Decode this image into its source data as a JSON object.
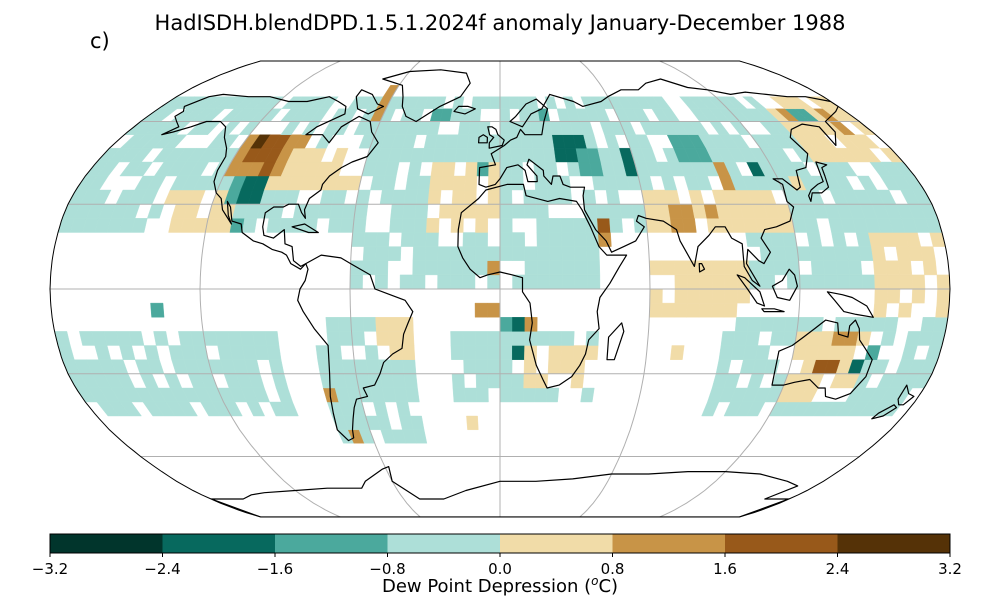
{
  "title": "HadISDH.blendDPD.1.5.1.2024f anomaly January-December 1988",
  "panel_label": "c)",
  "projection": "Robinson",
  "map": {
    "ocean_color": "#ffffff",
    "graticule_color": "#b0b0b0",
    "coast_color": "#000000"
  },
  "colorbar": {
    "label_text": "Dew Point Depression (",
    "label_unit_sup": "o",
    "label_unit_tail": "C)",
    "ticks": [
      "−3.2",
      "−2.4",
      "−1.6",
      "−0.8",
      "0.0",
      "0.8",
      "1.6",
      "2.4",
      "3.2"
    ],
    "bins": [
      {
        "from": -3.2,
        "to": -2.4,
        "color": "#01352c"
      },
      {
        "from": -2.4,
        "to": -1.6,
        "color": "#07695e"
      },
      {
        "from": -1.6,
        "to": -0.8,
        "color": "#4ba99d"
      },
      {
        "from": -0.8,
        "to": 0.0,
        "color": "#addfd8"
      },
      {
        "from": 0.0,
        "to": 0.8,
        "color": "#f1dca8"
      },
      {
        "from": 0.8,
        "to": 1.6,
        "color": "#c89447"
      },
      {
        "from": 1.6,
        "to": 2.4,
        "color": "#98591a"
      },
      {
        "from": 2.4,
        "to": 3.2,
        "color": "#553207"
      }
    ]
  }
}
